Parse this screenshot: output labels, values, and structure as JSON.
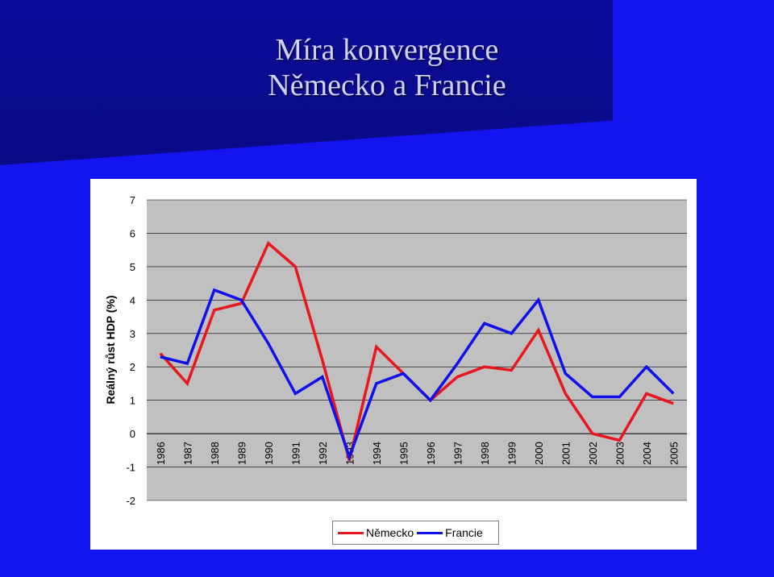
{
  "title": {
    "line1": "Míra konvergence",
    "line2": "Německo a Francie"
  },
  "colors": {
    "background": "#1414f0",
    "banner": "#0b0b8f",
    "title_text": "#cfd3ff",
    "plot_area": "#c0c0c0",
    "germany": "#e8161e",
    "france": "#1010e8"
  },
  "chart_data": {
    "type": "line",
    "title": "",
    "xlabel": "",
    "ylabel": "Reálný růst HDP (%)",
    "x": [
      "1986",
      "1987",
      "1988",
      "1989",
      "1990",
      "1991",
      "1992",
      "1993",
      "1994",
      "1995",
      "1996",
      "1997",
      "1998",
      "1999",
      "2000",
      "2001",
      "2002",
      "2003",
      "2004",
      "2005"
    ],
    "ylim": [
      -2,
      7
    ],
    "yticks": [
      "7",
      "6",
      "5",
      "4",
      "3",
      "2",
      "1",
      "0",
      "-1",
      "-2"
    ],
    "grid": true,
    "legend_position": "bottom",
    "series": [
      {
        "name": "Německo",
        "color": "#e8161e",
        "values": [
          2.4,
          1.5,
          3.7,
          3.9,
          5.7,
          5.0,
          2.2,
          -0.8,
          2.6,
          1.8,
          1.0,
          1.7,
          2.0,
          1.9,
          3.1,
          1.2,
          0.0,
          -0.2,
          1.2,
          0.9
        ]
      },
      {
        "name": "Francie",
        "color": "#1010e8",
        "values": [
          2.3,
          2.1,
          4.3,
          4.0,
          2.7,
          1.2,
          1.7,
          -0.7,
          1.5,
          1.8,
          1.0,
          2.1,
          3.3,
          3.0,
          4.0,
          1.8,
          1.1,
          1.1,
          2.0,
          1.2
        ]
      }
    ]
  }
}
